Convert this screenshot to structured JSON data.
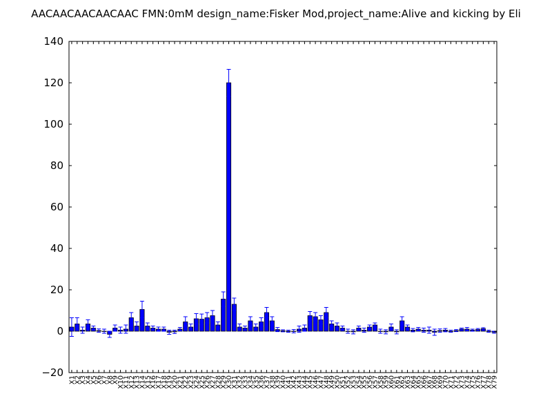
{
  "chart_data": {
    "type": "bar",
    "title": "AACAACAACAACAAC  FMN:0mM  design_name:Fisker Mod,project_name:Alive and kicking by Eli",
    "xlabel": "",
    "ylabel": "",
    "ylim": [
      -20,
      140
    ],
    "yticks": [
      -20,
      0,
      20,
      40,
      60,
      80,
      100,
      120,
      140
    ],
    "grid": false,
    "bar_color": "#0000ff",
    "error_color": "#0000ff",
    "categories": [
      "X1",
      "X2",
      "X3",
      "X4",
      "X5",
      "X6",
      "X7",
      "X8",
      "X9",
      "X10",
      "X11",
      "X12",
      "X13",
      "X14",
      "X15",
      "X16",
      "X17",
      "X18",
      "X19",
      "X20",
      "X21",
      "X22",
      "X23",
      "X24",
      "X25",
      "X26",
      "X27",
      "X28",
      "X29",
      "X30",
      "X31",
      "X32",
      "X33",
      "X34",
      "X35",
      "X36",
      "X37",
      "X38",
      "X39",
      "X40",
      "X41",
      "X42",
      "X43",
      "X44",
      "X45",
      "X46",
      "X47",
      "X48",
      "X49",
      "X50",
      "X51",
      "X52",
      "X53",
      "X54",
      "X55",
      "X56",
      "X57",
      "X58",
      "X59",
      "X60",
      "X61",
      "X62",
      "X63",
      "X64",
      "X65",
      "X66",
      "X67",
      "X68",
      "X69",
      "X70",
      "X71",
      "X72",
      "X73",
      "X74",
      "X75",
      "X76",
      "X77",
      "X78",
      "X79"
    ],
    "values": [
      2.0,
      3.5,
      0.5,
      3.5,
      1.5,
      0.3,
      0.0,
      -1.5,
      1.5,
      0.5,
      1.0,
      6.5,
      2.5,
      10.5,
      2.5,
      1.5,
      1.0,
      1.0,
      -0.5,
      -0.3,
      1.0,
      4.5,
      2.0,
      6.0,
      5.8,
      6.5,
      7.5,
      3.0,
      15.5,
      120.0,
      13.0,
      2.0,
      1.5,
      5.0,
      2.0,
      4.5,
      9.0,
      5.0,
      0.8,
      0.2,
      0.0,
      0.0,
      1.0,
      1.5,
      7.5,
      7.0,
      5.5,
      9.0,
      3.5,
      2.5,
      1.5,
      0.0,
      -0.3,
      1.5,
      0.5,
      2.0,
      3.0,
      0.0,
      -0.3,
      2.0,
      -0.3,
      5.0,
      2.0,
      0.5,
      1.0,
      0.5,
      0.5,
      -0.5,
      0.3,
      0.5,
      0.0,
      0.3,
      1.0,
      1.0,
      0.5,
      0.8,
      1.2,
      0.0,
      -0.5
    ],
    "errors": [
      4.5,
      3.0,
      1.5,
      2.0,
      1.0,
      0.8,
      1.0,
      1.5,
      1.5,
      1.5,
      2.0,
      2.5,
      2.0,
      4.0,
      1.5,
      1.0,
      1.0,
      1.0,
      1.0,
      0.8,
      0.8,
      2.5,
      1.5,
      2.5,
      2.5,
      2.5,
      2.5,
      1.5,
      3.5,
      6.5,
      3.0,
      1.5,
      1.0,
      2.0,
      1.5,
      2.0,
      2.5,
      2.0,
      1.0,
      0.5,
      0.5,
      0.8,
      1.5,
      1.5,
      2.0,
      2.0,
      2.0,
      2.5,
      1.5,
      1.5,
      1.0,
      1.0,
      1.0,
      1.0,
      1.0,
      1.0,
      1.0,
      1.0,
      1.0,
      1.5,
      1.0,
      2.0,
      1.0,
      0.8,
      0.8,
      1.0,
      1.5,
      1.5,
      0.8,
      0.8,
      0.5,
      0.5,
      0.5,
      0.8,
      0.5,
      0.5,
      0.5,
      0.5,
      0.5
    ]
  }
}
